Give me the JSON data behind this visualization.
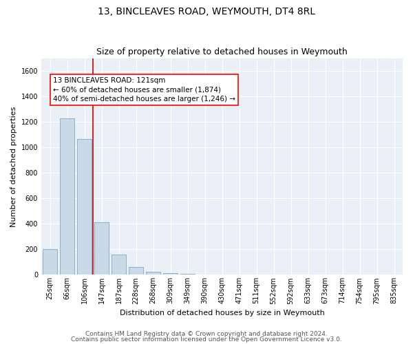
{
  "title": "13, BINCLEAVES ROAD, WEYMOUTH, DT4 8RL",
  "subtitle": "Size of property relative to detached houses in Weymouth",
  "xlabel": "Distribution of detached houses by size in Weymouth",
  "ylabel": "Number of detached properties",
  "categories": [
    "25sqm",
    "66sqm",
    "106sqm",
    "147sqm",
    "187sqm",
    "228sqm",
    "268sqm",
    "309sqm",
    "349sqm",
    "390sqm",
    "430sqm",
    "471sqm",
    "511sqm",
    "552sqm",
    "592sqm",
    "633sqm",
    "673sqm",
    "714sqm",
    "754sqm",
    "795sqm",
    "835sqm"
  ],
  "values": [
    200,
    1230,
    1065,
    410,
    160,
    60,
    25,
    15,
    10,
    0,
    0,
    0,
    0,
    0,
    0,
    0,
    0,
    0,
    0,
    0,
    0
  ],
  "bar_color": "#c9d9e8",
  "bar_edge_color": "#6a9cc0",
  "bar_edge_width": 0.5,
  "red_line_index": 2,
  "annotation_text": "13 BINCLEAVES ROAD: 121sqm\n← 60% of detached houses are smaller (1,874)\n40% of semi-detached houses are larger (1,246) →",
  "annotation_box_color": "white",
  "annotation_box_edge_color": "red",
  "red_line_color": "#cc0000",
  "ylim": [
    0,
    1700
  ],
  "yticks": [
    0,
    200,
    400,
    600,
    800,
    1000,
    1200,
    1400,
    1600
  ],
  "footer_line1": "Contains HM Land Registry data © Crown copyright and database right 2024.",
  "footer_line2": "Contains public sector information licensed under the Open Government Licence v3.0.",
  "bg_color": "#eaf0f6",
  "grid_color": "#ffffff",
  "title_fontsize": 10,
  "subtitle_fontsize": 9,
  "axis_label_fontsize": 8,
  "tick_fontsize": 7,
  "annotation_fontsize": 7.5,
  "footer_fontsize": 6.5
}
